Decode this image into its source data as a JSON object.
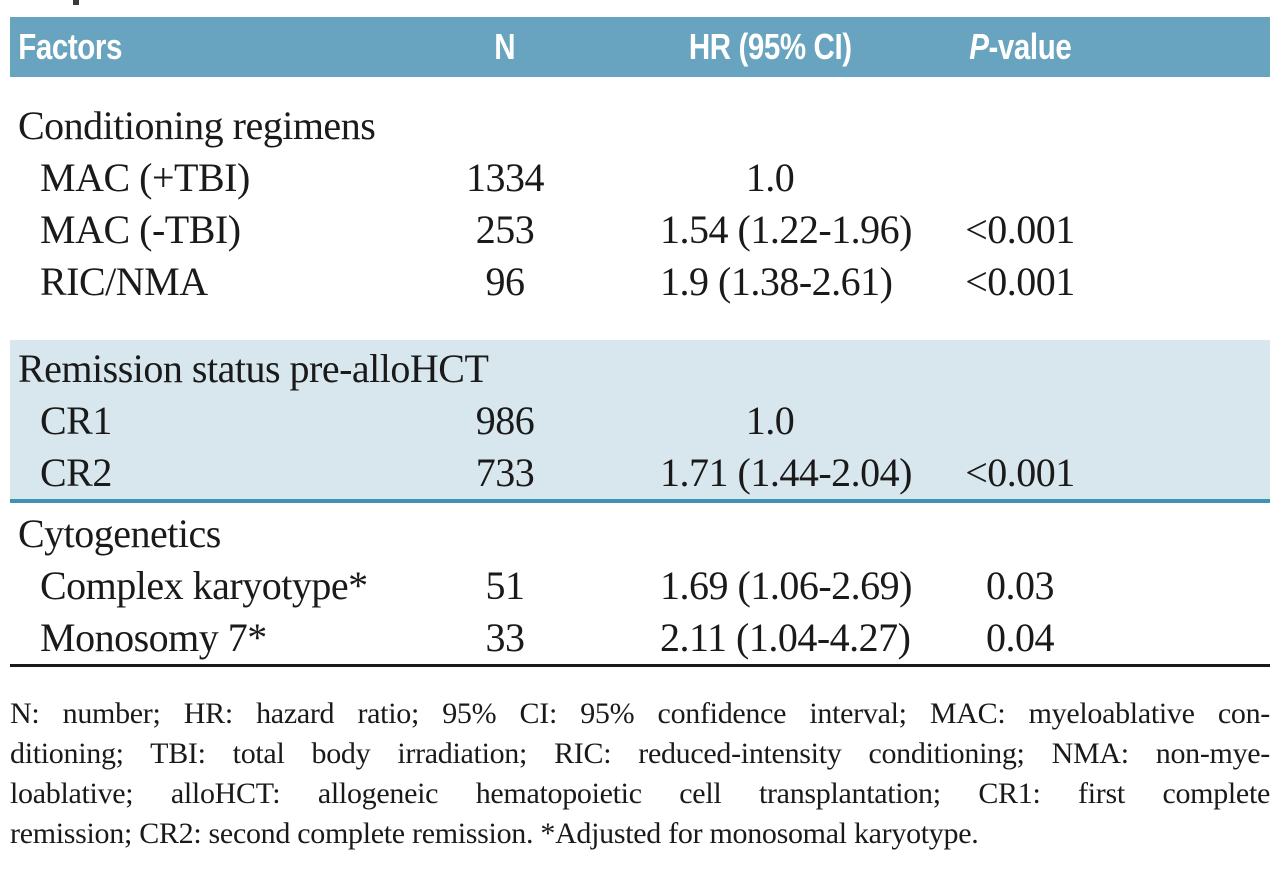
{
  "table": {
    "headers": {
      "factors": "Factors",
      "n": "N",
      "hr": "HR (95% CI)",
      "p": "P-value"
    },
    "sections": [
      {
        "title": "Conditioning regimens",
        "highlight": false,
        "rows": [
          {
            "factor": "MAC (+TBI)",
            "n": "1334",
            "hr": "1.0",
            "p": ""
          },
          {
            "factor": "MAC (-TBI)",
            "n": "253",
            "hr": "1.54 (1.22-1.96)",
            "p": "<0.001"
          },
          {
            "factor": "RIC/NMA",
            "n": "96",
            "hr": "1.9 (1.38-2.61)",
            "p": "<0.001"
          }
        ]
      },
      {
        "title": "Remission status pre-alloHCT",
        "highlight": true,
        "rows": [
          {
            "factor": "CR1",
            "n": "986",
            "hr": "1.0",
            "p": ""
          },
          {
            "factor": "CR2",
            "n": "733",
            "hr": "1.71 (1.44-2.04)",
            "p": "<0.001"
          }
        ]
      },
      {
        "title": "Cytogenetics",
        "highlight": false,
        "rows": [
          {
            "factor": "Complex karyotype*",
            "n": "51",
            "hr": "1.69 (1.06-2.69)",
            "p": "0.03"
          },
          {
            "factor": "Monosomy 7*",
            "n": "33",
            "hr": "2.11 (1.04-4.27)",
            "p": "0.04"
          }
        ]
      }
    ]
  },
  "footnote": {
    "lines": [
      "N: number; HR: hazard ratio; 95% CI: 95% confidence interval; MAC: myeloablative con-",
      "ditioning; TBI: total body irradiation; RIC: reduced-intensity conditioning; NMA: non-mye-",
      "loablative; alloHCT: allogeneic hematopoietic cell transplantation; CR1: first complete",
      "remission; CR2: second complete remission. *Adjusted for monosomal karyotype."
    ],
    "full_text": "N: number; HR: hazard ratio; 95% CI: 95% confidence interval; MAC: myeloablative conditioning; TBI: total body irradiation; RIC: reduced-intensity conditioning; NMA: non-myeloablative; alloHCT: allogeneic hematopoietic cell transplantation; CR1: first complete remission; CR2: second complete remission. *Adjusted for monosomal karyotype."
  },
  "colors": {
    "header_bg": "#68a3bf",
    "header_text": "#ffffff",
    "highlight_band_bg": "#d8e7ee",
    "highlight_band_border": "#3e92b4",
    "text": "#1a1a1a",
    "bottom_rule": "#1a1a1a"
  }
}
